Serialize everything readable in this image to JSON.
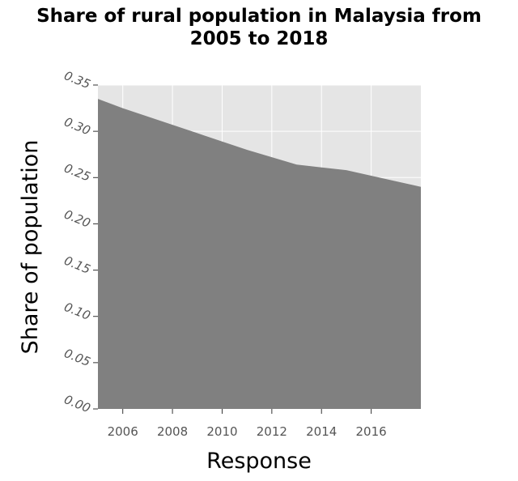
{
  "chart_data": {
    "type": "area",
    "title": "Share of rural population in Malaysia from 2005 to 2018",
    "xlabel": "Response",
    "ylabel": "Share of population",
    "xlim": [
      2005,
      2018
    ],
    "ylim": [
      0,
      0.35
    ],
    "x_ticks": [
      2006,
      2008,
      2010,
      2012,
      2014,
      2016
    ],
    "y_ticks": [
      "0.00",
      "0.05",
      "0.10",
      "0.15",
      "0.20",
      "0.25",
      "0.30",
      "0.35"
    ],
    "grid": true,
    "legend": "none",
    "colors": {
      "fill": "#808080",
      "background": "#e5e5e5",
      "grid": "#ffffff"
    },
    "series": [
      {
        "x": [
          2005,
          2006,
          2007,
          2008,
          2009,
          2010,
          2011,
          2012,
          2013,
          2014,
          2015,
          2016,
          2017,
          2018
        ],
        "values": [
          0.335,
          0.325,
          0.316,
          0.307,
          0.298,
          0.289,
          0.28,
          0.272,
          0.264,
          0.261,
          0.258,
          0.252,
          0.246,
          0.24
        ]
      }
    ]
  }
}
